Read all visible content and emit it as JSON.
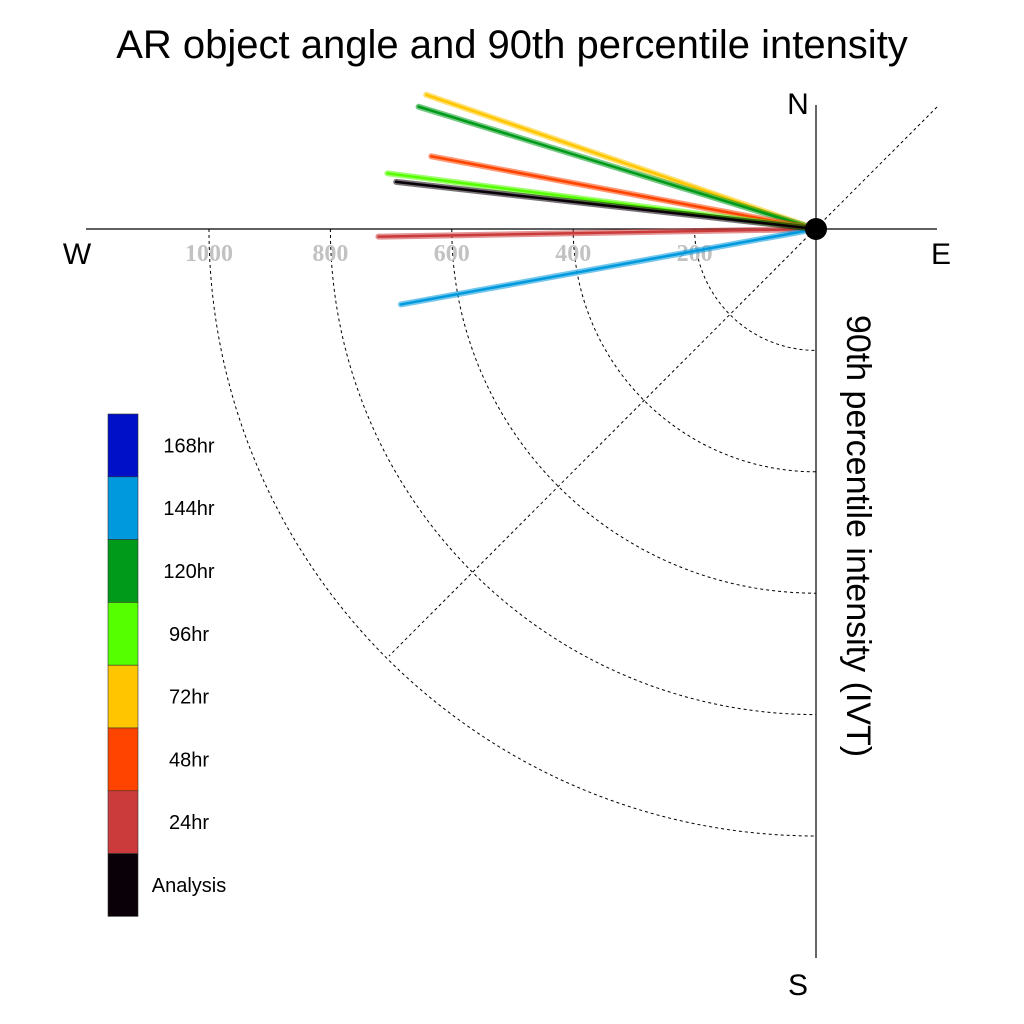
{
  "chart_data": {
    "type": "line",
    "title": "AR object angle and 90th percentile intensity",
    "ylabel": "90th percentile intensity (IVT)",
    "compass": {
      "north": "N",
      "south": "S",
      "east": "E",
      "west": "W"
    },
    "radial_ticks": [
      1000,
      800,
      600,
      400,
      200
    ],
    "radial_range": [
      0,
      1000
    ],
    "grid": "dashed quarter circles and dashed diagonal",
    "legend_placement": "left",
    "series": [
      {
        "name": "168hr",
        "color": "#0010c8",
        "intensity": null,
        "angle_deg": null
      },
      {
        "name": "144hr",
        "color": "#0099dd",
        "intensity": 695,
        "angle_deg": -10.3
      },
      {
        "name": "120hr",
        "color": "#009a1a",
        "intensity": 685,
        "angle_deg": 17.1
      },
      {
        "name": "96hr",
        "color": "#55ff00",
        "intensity": 712,
        "angle_deg": 7.4
      },
      {
        "name": "72hr",
        "color": "#ffc600",
        "intensity": 679,
        "angle_deg": 19.0
      },
      {
        "name": "48hr",
        "color": "#ff4400",
        "intensity": 645,
        "angle_deg": 10.7
      },
      {
        "name": "24hr",
        "color": "#cc3b3b",
        "intensity": 721,
        "angle_deg": -1.0
      },
      {
        "name": "Analysis",
        "color": "#0a0008",
        "intensity": 696,
        "angle_deg": 6.4
      }
    ]
  }
}
